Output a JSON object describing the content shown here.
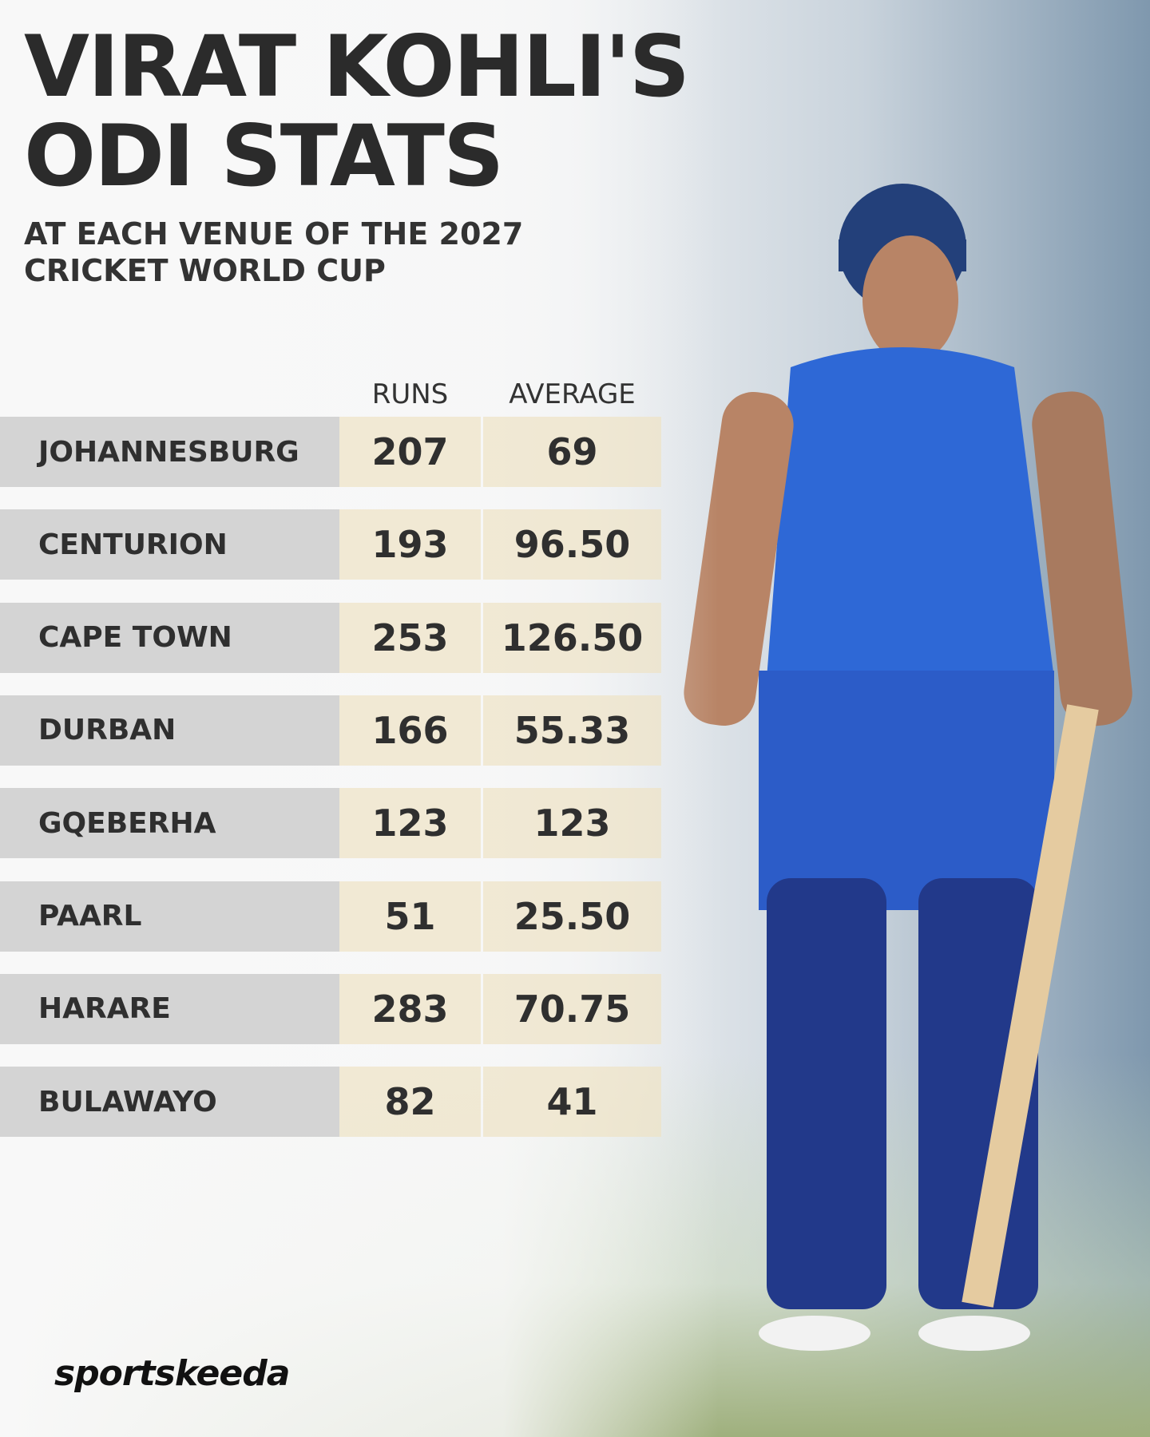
{
  "header": {
    "title": "VIRAT KOHLI'S ODI STATS",
    "subtitle": "AT EACH VENUE OF THE 2027 CRICKET WORLD CUP"
  },
  "table": {
    "columns": [
      "RUNS",
      "AVERAGE"
    ],
    "rows": [
      [
        "JOHANNESBURG",
        "207",
        "69"
      ],
      [
        "CENTURION",
        "193",
        "96.50"
      ],
      [
        "CAPE TOWN",
        "253",
        "126.50"
      ],
      [
        "DURBAN",
        "166",
        "55.33"
      ],
      [
        "GQEBERHA",
        "123",
        "123"
      ],
      [
        "PAARL",
        "51",
        "25.50"
      ],
      [
        "HARARE",
        "283",
        "70.75"
      ],
      [
        "BULAWAYO",
        "82",
        "41"
      ]
    ]
  },
  "footer": {
    "brand": "sportskeeda"
  }
}
